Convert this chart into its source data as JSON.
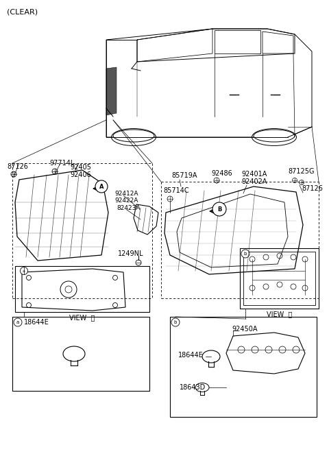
{
  "bg_color": "#ffffff",
  "fig_width": 4.8,
  "fig_height": 6.65,
  "dpi": 100,
  "labels": {
    "clear": "(CLEAR)",
    "label_87126_left": "87126",
    "label_97714L": "97714L",
    "label_92405": "92405",
    "label_92406": "92406",
    "label_92412A": "92412A",
    "label_92422A": "92422A",
    "label_82423A": "82423A",
    "label_85719A": "85719A",
    "label_85714C": "85714C",
    "label_92486": "92486",
    "label_92401A": "92401A",
    "label_92402A": "92402A",
    "label_87125G": "87125G",
    "label_87126_right": "87126",
    "label_1249NL": "1249NL",
    "label_92450A": "92450A",
    "label_18644E": "18644E",
    "label_18644E_b": "18644E",
    "label_18643D": "18643D",
    "circled_A": "Ⓐ",
    "circled_B": "Ⓑ",
    "circled_a": "⓶",
    "circled_b": "⓷"
  }
}
